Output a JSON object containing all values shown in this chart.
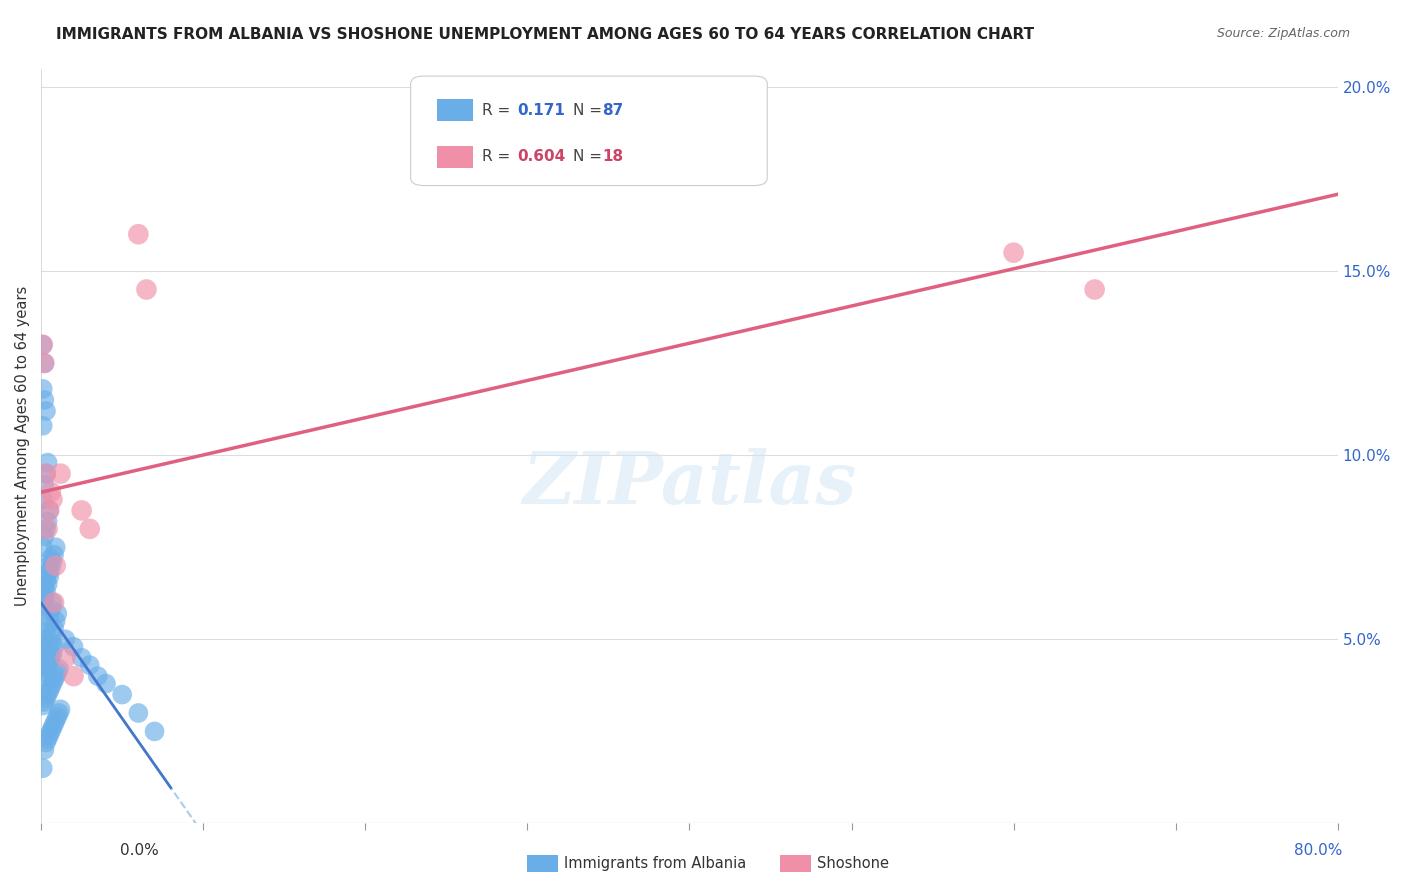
{
  "title": "IMMIGRANTS FROM ALBANIA VS SHOSHONE UNEMPLOYMENT AMONG AGES 60 TO 64 YEARS CORRELATION CHART",
  "source": "Source: ZipAtlas.com",
  "ylabel": "Unemployment Among Ages 60 to 64 years",
  "watermark": "ZIPatlas",
  "background_color": "#ffffff",
  "grid_color": "#dddddd",
  "albania_color": "#6aaee8",
  "shoshone_color": "#f090a8",
  "albania_line_color": "#4477cc",
  "shoshone_line_color": "#e06080",
  "dashed_line_color": "#aaccee",
  "albania_R": "0.171",
  "albania_N": "87",
  "shoshone_R": "0.604",
  "shoshone_N": "18",
  "xlim": [
    0,
    0.8
  ],
  "ylim": [
    0,
    0.205
  ],
  "yticks": [
    0.0,
    0.05,
    0.1,
    0.15,
    0.2
  ],
  "ytick_labels": [
    "",
    "5.0%",
    "10.0%",
    "15.0%",
    "20.0%"
  ],
  "albania_points_x": [
    0.001,
    0.002,
    0.001,
    0.003,
    0.002,
    0.001,
    0.004,
    0.003,
    0.002,
    0.001,
    0.005,
    0.004,
    0.003,
    0.002,
    0.001,
    0.006,
    0.005,
    0.004,
    0.003,
    0.002,
    0.001,
    0.007,
    0.006,
    0.005,
    0.004,
    0.003,
    0.002,
    0.001,
    0.008,
    0.007,
    0.006,
    0.005,
    0.004,
    0.003,
    0.002,
    0.001,
    0.009,
    0.008,
    0.007,
    0.006,
    0.005,
    0.004,
    0.003,
    0.002,
    0.001,
    0.01,
    0.009,
    0.008,
    0.007,
    0.006,
    0.005,
    0.004,
    0.003,
    0.002,
    0.001,
    0.011,
    0.01,
    0.009,
    0.008,
    0.007,
    0.006,
    0.005,
    0.004,
    0.003,
    0.002,
    0.001,
    0.012,
    0.011,
    0.01,
    0.009,
    0.008,
    0.007,
    0.006,
    0.005,
    0.004,
    0.003,
    0.002,
    0.001,
    0.015,
    0.02,
    0.025,
    0.03,
    0.035,
    0.04,
    0.05,
    0.06,
    0.07
  ],
  "albania_points_y": [
    0.13,
    0.125,
    0.118,
    0.112,
    0.115,
    0.108,
    0.098,
    0.095,
    0.092,
    0.088,
    0.085,
    0.082,
    0.08,
    0.078,
    0.075,
    0.072,
    0.07,
    0.068,
    0.066,
    0.064,
    0.062,
    0.06,
    0.058,
    0.056,
    0.054,
    0.052,
    0.05,
    0.049,
    0.048,
    0.046,
    0.045,
    0.044,
    0.043,
    0.042,
    0.041,
    0.04,
    0.075,
    0.073,
    0.071,
    0.069,
    0.067,
    0.065,
    0.063,
    0.061,
    0.059,
    0.057,
    0.055,
    0.053,
    0.051,
    0.049,
    0.047,
    0.046,
    0.045,
    0.044,
    0.043,
    0.042,
    0.041,
    0.04,
    0.039,
    0.038,
    0.037,
    0.036,
    0.035,
    0.034,
    0.033,
    0.032,
    0.031,
    0.03,
    0.029,
    0.028,
    0.027,
    0.026,
    0.025,
    0.024,
    0.023,
    0.022,
    0.02,
    0.015,
    0.05,
    0.048,
    0.045,
    0.043,
    0.04,
    0.038,
    0.035,
    0.03,
    0.025
  ],
  "shoshone_points_x": [
    0.001,
    0.002,
    0.003,
    0.004,
    0.005,
    0.006,
    0.007,
    0.008,
    0.009,
    0.012,
    0.015,
    0.02,
    0.025,
    0.03,
    0.06,
    0.065,
    0.6,
    0.65
  ],
  "shoshone_points_y": [
    0.13,
    0.125,
    0.095,
    0.08,
    0.085,
    0.09,
    0.088,
    0.06,
    0.07,
    0.095,
    0.045,
    0.04,
    0.085,
    0.08,
    0.16,
    0.145,
    0.155,
    0.145
  ]
}
